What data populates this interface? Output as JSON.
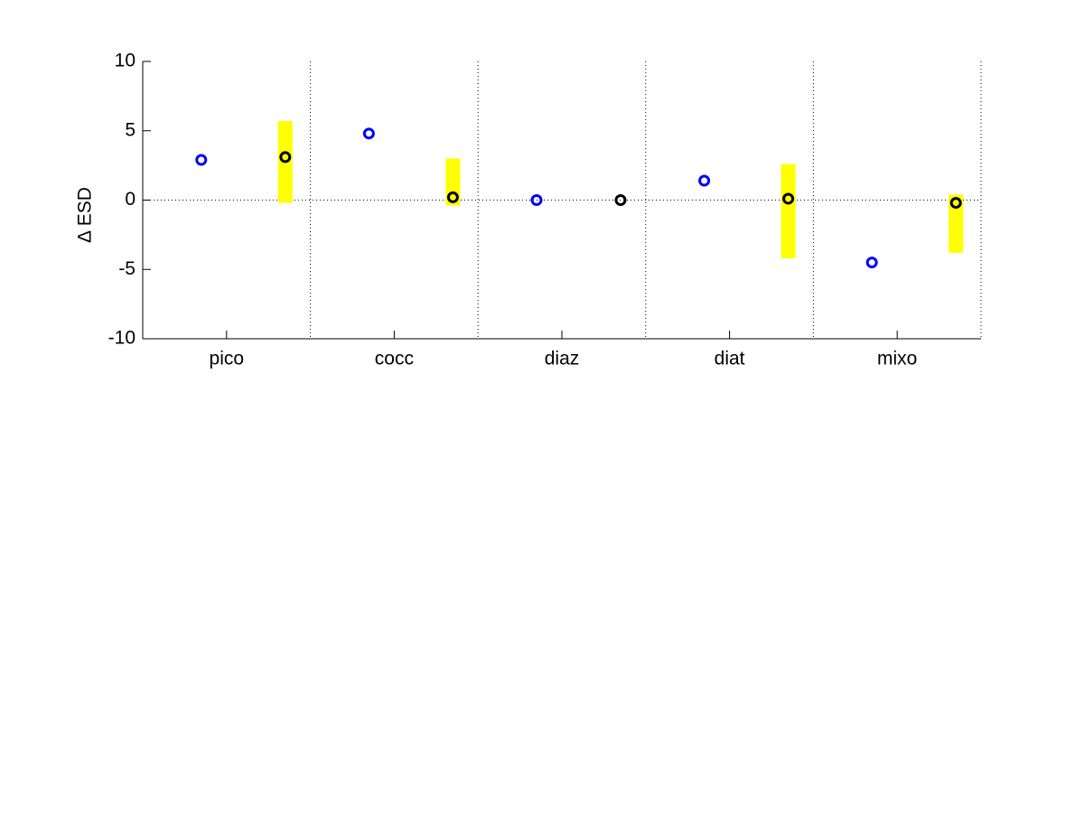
{
  "chart_data": {
    "type": "scatter",
    "y_label": "Δ ESD",
    "categories": [
      "pico",
      "cocc",
      "diaz",
      "diat",
      "mixo"
    ],
    "series": [
      {
        "color": "#0000ff",
        "values": [
          2.9,
          4.8,
          0,
          1.4,
          -4.5
        ]
      },
      {
        "color": "#000000",
        "values": [
          3.1,
          0.2,
          0,
          0.1,
          -0.2
        ],
        "low": [
          -0.2,
          -0.4,
          null,
          -4.2,
          -3.8
        ],
        "high": [
          5.7,
          3.0,
          null,
          2.6,
          0.4
        ],
        "range_color": "#ffff00"
      }
    ],
    "ylim": [
      -10,
      10
    ],
    "yticks": [
      -10,
      -5,
      0,
      5,
      10
    ],
    "zero_line": true
  }
}
